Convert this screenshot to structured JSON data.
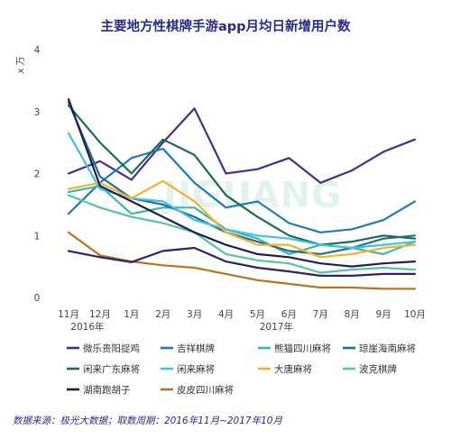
{
  "chart_data": {
    "type": "line",
    "title": "主要地方性棋牌手游app月均日新增用户数",
    "ylabel": "x 万",
    "ylim": [
      0,
      4
    ],
    "yticks": [
      "0",
      "1",
      "2",
      "3",
      "4"
    ],
    "categories": [
      "11月",
      "12月",
      "1月",
      "2月",
      "3月",
      "4月",
      "5月",
      "6月",
      "7月",
      "8月",
      "9月",
      "10月"
    ],
    "year_labels": [
      "2016年",
      "2017年"
    ],
    "grid": false,
    "legend_position": "bottom",
    "series": [
      {
        "name": "微乐贵阳捉鸡",
        "color": "#4a2c8a",
        "values": [
          2.0,
          2.2,
          1.9,
          2.5,
          3.05,
          2.0,
          2.07,
          2.25,
          1.85,
          2.05,
          2.35,
          2.55
        ]
      },
      {
        "name": "吉祥棋牌",
        "color": "#1f7ab8",
        "values": [
          1.35,
          1.85,
          2.25,
          2.4,
          1.85,
          1.45,
          1.55,
          1.2,
          1.05,
          1.1,
          1.25,
          1.55
        ]
      },
      {
        "name": "熊猫四川麻将",
        "color": "#3cb7a5",
        "values": [
          1.7,
          1.8,
          1.35,
          1.45,
          1.45,
          1.1,
          0.95,
          0.7,
          0.85,
          0.8,
          0.7,
          0.9
        ]
      },
      {
        "name": "琼崖海南麻将",
        "color": "#1f6f8b",
        "values": [
          3.15,
          1.95,
          1.6,
          1.5,
          1.3,
          1.05,
          0.9,
          0.75,
          0.7,
          0.8,
          0.95,
          1.0
        ]
      },
      {
        "name": "闲来广东麻将",
        "color": "#1a6b50",
        "values": [
          3.1,
          2.5,
          2.0,
          2.55,
          2.3,
          1.65,
          1.3,
          1.0,
          0.85,
          0.9,
          1.0,
          0.95
        ]
      },
      {
        "name": "闲来麻将",
        "color": "#40c0e8",
        "values": [
          2.65,
          1.75,
          1.6,
          1.55,
          1.25,
          1.1,
          1.0,
          0.95,
          0.85,
          0.8,
          0.85,
          0.9
        ]
      },
      {
        "name": "大唐麻将",
        "color": "#f2b12e",
        "values": [
          1.75,
          1.85,
          1.6,
          1.88,
          1.55,
          1.05,
          0.85,
          0.85,
          0.65,
          0.7,
          0.8,
          0.85
        ]
      },
      {
        "name": "波克棋牌",
        "color": "#55c69a",
        "values": [
          1.65,
          1.45,
          1.3,
          1.2,
          1.05,
          0.7,
          0.6,
          0.55,
          0.4,
          0.45,
          0.48,
          0.45
        ]
      },
      {
        "name": "湖南跑胡子",
        "color": "#1e1c52",
        "values": [
          3.2,
          1.8,
          1.55,
          1.3,
          1.05,
          0.85,
          0.7,
          0.65,
          0.55,
          0.5,
          0.55,
          0.58
        ]
      },
      {
        "name": "皮皮四川麻将",
        "color": "#b9741c",
        "values": [
          1.05,
          0.68,
          0.58,
          0.52,
          0.48,
          0.38,
          0.28,
          0.22,
          0.16,
          0.16,
          0.14,
          0.14
        ]
      },
      {
        "name": "",
        "color": "#2a2460",
        "values": [
          0.75,
          0.65,
          0.57,
          0.75,
          0.8,
          0.58,
          0.48,
          0.42,
          0.35,
          0.35,
          0.38,
          0.38
        ]
      }
    ],
    "watermark": "JIGUANG",
    "source": "数据来源：极光大数据；取数周期：2016年11月~2017年10月"
  }
}
